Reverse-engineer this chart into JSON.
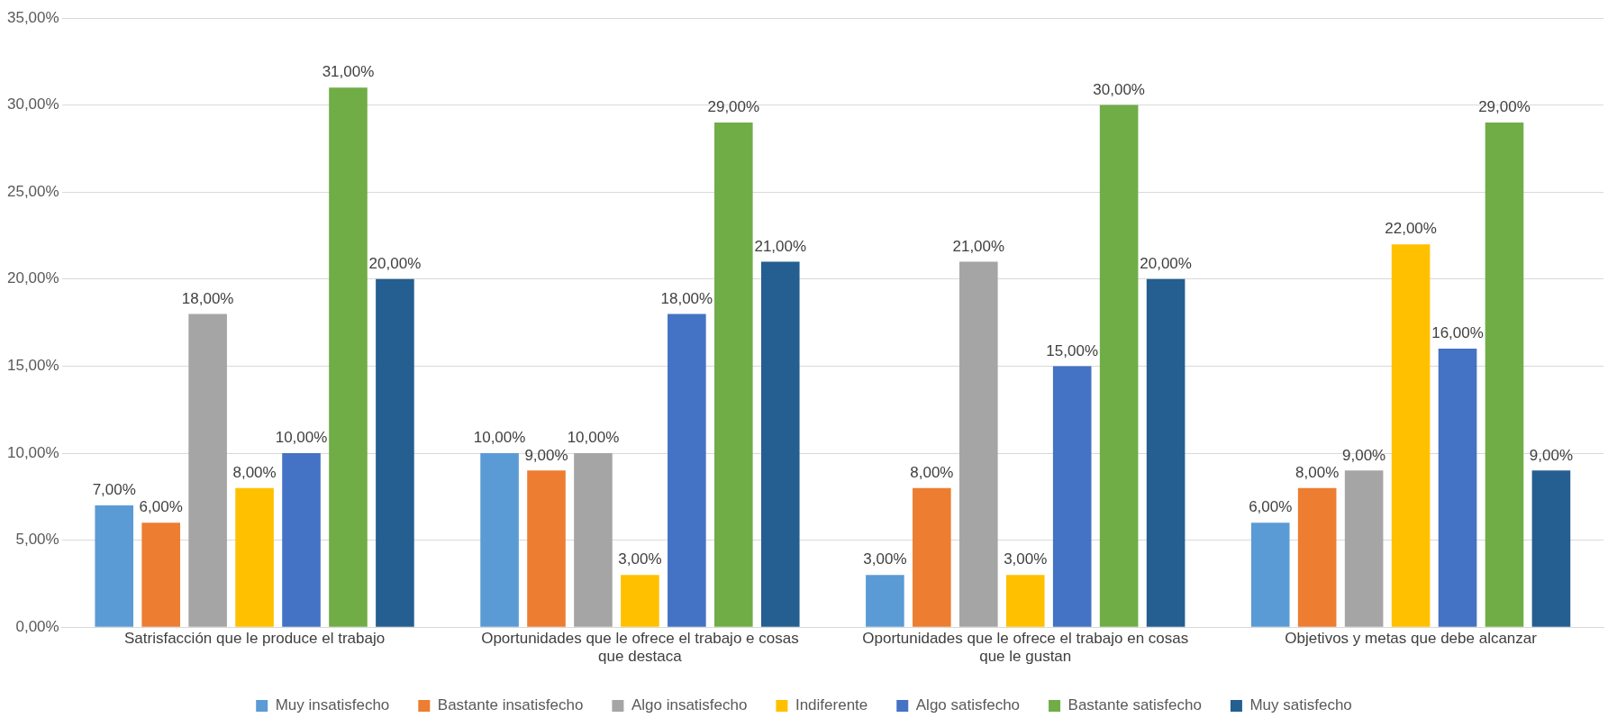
{
  "chart_data": {
    "type": "bar",
    "categories": [
      "Satrisfacción que le produce el trabajo",
      "Oportunidades que le ofrece el trabajo e cosas que destaca",
      "Oportunidades que le ofrece el trabajo en cosas que le gustan",
      "Objetivos y metas que debe alcanzar"
    ],
    "series": [
      {
        "name": "Muy insatisfecho",
        "color": "#5b9bd5",
        "values": [
          7,
          10,
          3,
          6
        ],
        "value_labels": [
          "7,00%",
          "10,00%",
          "3,00%",
          "6,00%"
        ]
      },
      {
        "name": "Bastante insatisfecho",
        "color": "#ed7d31",
        "values": [
          6,
          9,
          8,
          8
        ],
        "value_labels": [
          "6,00%",
          "9,00%",
          "8,00%",
          "8,00%"
        ]
      },
      {
        "name": "Algo insatisfecho",
        "color": "#a5a5a5",
        "values": [
          18,
          10,
          21,
          9
        ],
        "value_labels": [
          "18,00%",
          "10,00%",
          "21,00%",
          "9,00%"
        ]
      },
      {
        "name": "Indiferente",
        "color": "#ffc000",
        "values": [
          8,
          3,
          3,
          22
        ],
        "value_labels": [
          "8,00%",
          "3,00%",
          "3,00%",
          "22,00%"
        ]
      },
      {
        "name": "Algo satisfecho",
        "color": "#4472c4",
        "values": [
          10,
          18,
          15,
          16
        ],
        "value_labels": [
          "10,00%",
          "18,00%",
          "15,00%",
          "16,00%"
        ]
      },
      {
        "name": "Bastante satisfecho",
        "color": "#70ad47",
        "values": [
          31,
          29,
          30,
          29
        ],
        "value_labels": [
          "31,00%",
          "29,00%",
          "30,00%",
          "29,00%"
        ]
      },
      {
        "name": "Muy satisfecho",
        "color": "#255e91",
        "values": [
          20,
          21,
          20,
          9
        ],
        "value_labels": [
          "20,00%",
          "21,00%",
          "20,00%",
          "9,00%"
        ]
      }
    ],
    "ylim": [
      0,
      35
    ],
    "yticks": [
      {
        "value": 0,
        "label": "0,00%"
      },
      {
        "value": 5,
        "label": "5,00%"
      },
      {
        "value": 10,
        "label": "10,00%"
      },
      {
        "value": 15,
        "label": "15,00%"
      },
      {
        "value": 20,
        "label": "20,00%"
      },
      {
        "value": 25,
        "label": "25,00%"
      },
      {
        "value": 30,
        "label": "30,00%"
      },
      {
        "value": 35,
        "label": "35,00%"
      }
    ],
    "grid": "y",
    "legend": "bottom"
  }
}
